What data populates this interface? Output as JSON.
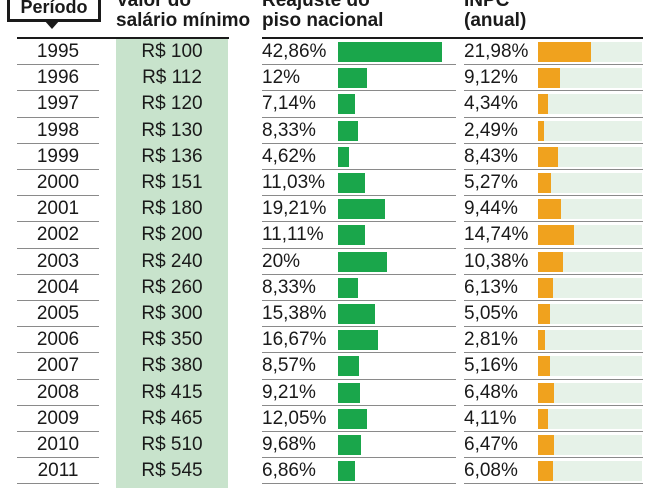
{
  "headers": {
    "period": "Período",
    "wage": [
      "Valor do",
      "salário mínimo"
    ],
    "raise": [
      "Reajuste do",
      "piso nacional"
    ],
    "inflation": [
      "INPC",
      "(anual)"
    ]
  },
  "colors": {
    "raise_bar": "#1aa64b",
    "inflation_bar": "#f0a21e",
    "wage_column": "#c8e3cc",
    "inflation_track": "#e6f2e8"
  },
  "chart_data": {
    "type": "table",
    "columns": [
      "Período",
      "Valor do salário mínimo",
      "Reajuste do piso nacional",
      "INPC (anual)"
    ],
    "rows": [
      {
        "year": "1995",
        "wage": "R$ 100",
        "raise_label": "42,86%",
        "raise": 42.86,
        "inflation_label": "21,98%",
        "inflation": 21.98
      },
      {
        "year": "1996",
        "wage": "R$ 112",
        "raise_label": "12%",
        "raise": 12.0,
        "inflation_label": "9,12%",
        "inflation": 9.12
      },
      {
        "year": "1997",
        "wage": "R$ 120",
        "raise_label": "7,14%",
        "raise": 7.14,
        "inflation_label": "4,34%",
        "inflation": 4.34
      },
      {
        "year": "1998",
        "wage": "R$ 130",
        "raise_label": "8,33%",
        "raise": 8.33,
        "inflation_label": "2,49%",
        "inflation": 2.49
      },
      {
        "year": "1999",
        "wage": "R$ 136",
        "raise_label": "4,62%",
        "raise": 4.62,
        "inflation_label": "8,43%",
        "inflation": 8.43
      },
      {
        "year": "2000",
        "wage": "R$ 151",
        "raise_label": "11,03%",
        "raise": 11.03,
        "inflation_label": "5,27%",
        "inflation": 5.27
      },
      {
        "year": "2001",
        "wage": "R$ 180",
        "raise_label": "19,21%",
        "raise": 19.21,
        "inflation_label": "9,44%",
        "inflation": 9.44
      },
      {
        "year": "2002",
        "wage": "R$ 200",
        "raise_label": "11,11%",
        "raise": 11.11,
        "inflation_label": "14,74%",
        "inflation": 14.74
      },
      {
        "year": "2003",
        "wage": "R$ 240",
        "raise_label": "20%",
        "raise": 20.0,
        "inflation_label": "10,38%",
        "inflation": 10.38
      },
      {
        "year": "2004",
        "wage": "R$ 260",
        "raise_label": "8,33%",
        "raise": 8.33,
        "inflation_label": "6,13%",
        "inflation": 6.13
      },
      {
        "year": "2005",
        "wage": "R$ 300",
        "raise_label": "15,38%",
        "raise": 15.38,
        "inflation_label": "5,05%",
        "inflation": 5.05
      },
      {
        "year": "2006",
        "wage": "R$ 350",
        "raise_label": "16,67%",
        "raise": 16.67,
        "inflation_label": "2,81%",
        "inflation": 2.81
      },
      {
        "year": "2007",
        "wage": "R$ 380",
        "raise_label": "8,57%",
        "raise": 8.57,
        "inflation_label": "5,16%",
        "inflation": 5.16
      },
      {
        "year": "2008",
        "wage": "R$ 415",
        "raise_label": "9,21%",
        "raise": 9.21,
        "inflation_label": "6,48%",
        "inflation": 6.48
      },
      {
        "year": "2009",
        "wage": "R$ 465",
        "raise_label": "12,05%",
        "raise": 12.05,
        "inflation_label": "4,11%",
        "inflation": 4.11
      },
      {
        "year": "2010",
        "wage": "R$ 510",
        "raise_label": "9,68%",
        "raise": 9.68,
        "inflation_label": "6,47%",
        "inflation": 6.47
      },
      {
        "year": "2011",
        "wage": "R$ 545",
        "raise_label": "6,86%",
        "raise": 6.86,
        "inflation_label": "6,08%",
        "inflation": 6.08
      }
    ]
  }
}
